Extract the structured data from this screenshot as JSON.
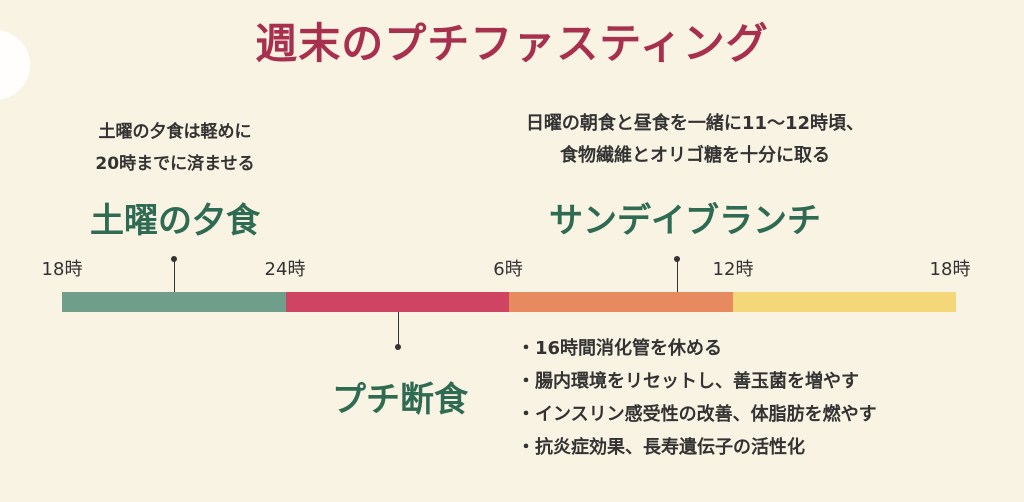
{
  "title": "週末のプチファスティング",
  "notes": {
    "dinner": [
      "土曜の夕食は軽めに",
      "20時までに済ませる"
    ],
    "brunch": [
      "日曜の朝食と昼食を一緒に11〜12時頃、",
      "食物繊維とオリゴ糖を十分に取る"
    ]
  },
  "labels": {
    "dinner": "土曜の夕食",
    "brunch": "サンデイブランチ",
    "fast": "プチ断食"
  },
  "ticks": [
    "18時",
    "24時",
    "6時",
    "12時",
    "18時"
  ],
  "segments": [
    {
      "color": "#6f9f8a",
      "hours": 6
    },
    {
      "color": "#cf4463",
      "hours": 6
    },
    {
      "color": "#e88a60",
      "hours": 6
    },
    {
      "color": "#f4d778",
      "hours": 6
    }
  ],
  "benefits": [
    "16時間消化管を休める",
    "腸内環境をリセットし、善玉菌を増やす",
    "インスリン感受性の改善、体脂肪を燃やす",
    "抗炎症効果、長寿遺伝子の活性化"
  ]
}
